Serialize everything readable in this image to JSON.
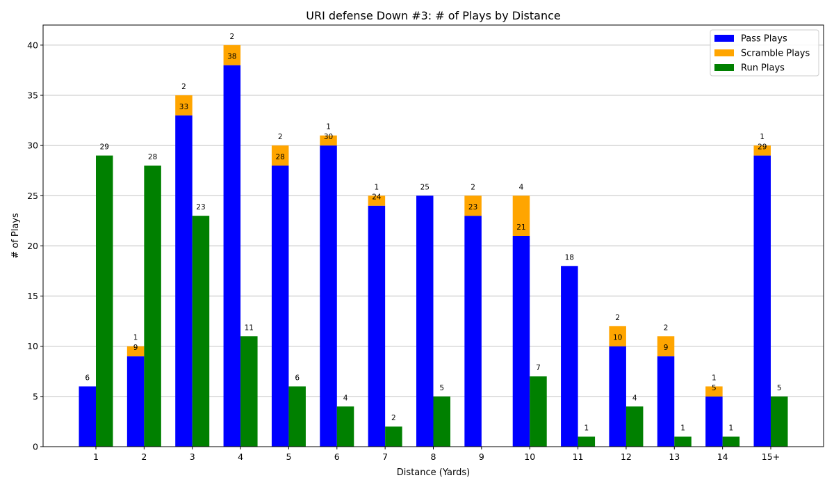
{
  "chart_data": {
    "type": "bar",
    "title": "URI defense Down #3: # of Plays by Distance",
    "xlabel": "Distance (Yards)",
    "ylabel": "# of Plays",
    "categories": [
      "1",
      "2",
      "3",
      "4",
      "5",
      "6",
      "7",
      "8",
      "9",
      "10",
      "11",
      "12",
      "13",
      "14",
      "15+"
    ],
    "ylim": [
      0,
      42
    ],
    "yticks": [
      0,
      5,
      10,
      15,
      20,
      25,
      30,
      35,
      40
    ],
    "grid": true,
    "legend_position": "top-right",
    "series": [
      {
        "name": "Pass Plays",
        "color": "#0000ff",
        "stack": "pass",
        "values": [
          6,
          9,
          33,
          38,
          28,
          30,
          24,
          25,
          23,
          21,
          18,
          10,
          9,
          5,
          29
        ]
      },
      {
        "name": "Scramble Plays",
        "color": "#ffa500",
        "stack": "pass",
        "values": [
          0,
          1,
          2,
          2,
          2,
          1,
          1,
          0,
          2,
          4,
          0,
          2,
          2,
          1,
          1
        ]
      },
      {
        "name": "Run Plays",
        "color": "#008000",
        "stack": "run",
        "values": [
          29,
          28,
          23,
          11,
          6,
          4,
          2,
          5,
          0,
          7,
          1,
          4,
          1,
          1,
          5
        ]
      }
    ]
  }
}
